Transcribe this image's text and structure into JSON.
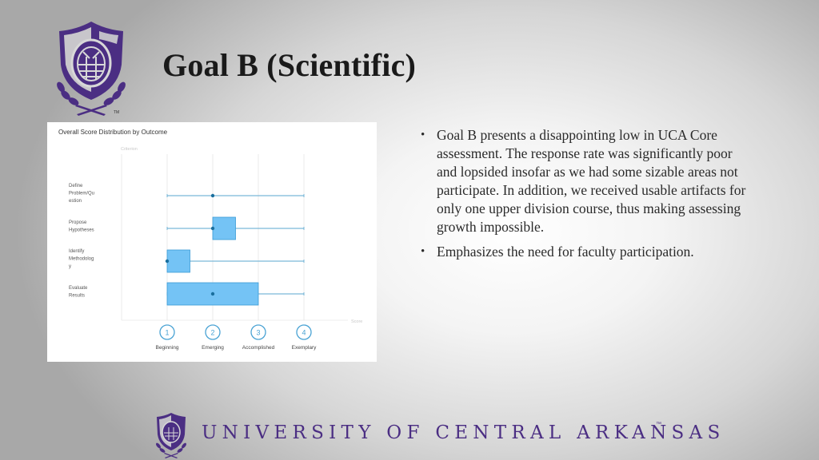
{
  "slide": {
    "title": "Goal B (Scientific)",
    "bullets": [
      "Goal B presents a disappointing low in UCA Core assessment. The response rate was significantly poor and lopsided insofar as we had some sizable areas not participate. In addition, we received usable artifacts for only one upper division course, thus making assessing growth impossible.",
      "Emphasizes the need for faculty participation."
    ],
    "footer": {
      "text": "UNIVERSITY OF CENTRAL ARKANSAS",
      "trademark": "™"
    },
    "logo_tm": "TM"
  },
  "colors": {
    "brand_purple": "#4b2e83",
    "box_fill": "#74c3f5",
    "box_stroke": "#3a9bd6",
    "whisker": "#5aa7cf",
    "median_dot": "#1a6f9e",
    "grid": "#e6e6e6",
    "circle_stroke": "#4aa3d4"
  },
  "chart_data": {
    "type": "boxplot",
    "title": "Overall Score Distribution by Outcome",
    "ylabel": "Criterion",
    "xlabel": "Score",
    "xlim": [
      0,
      4.5
    ],
    "ticks": [
      {
        "value": 1,
        "label": "Beginning"
      },
      {
        "value": 2,
        "label": "Emerging"
      },
      {
        "value": 3,
        "label": "Accomplished"
      },
      {
        "value": 4,
        "label": "Exemplary"
      }
    ],
    "grid": true,
    "series": [
      {
        "name": "Define Problem/Question",
        "label_lines": [
          "Define",
          "Problem/Qu",
          "estion"
        ],
        "min": 1,
        "q1": 2,
        "median": 2,
        "q3": 2,
        "max": 4
      },
      {
        "name": "Propose Hypotheses",
        "label_lines": [
          "Propose",
          "Hypotheses"
        ],
        "min": 1,
        "q1": 2,
        "median": 2,
        "q3": 2.5,
        "max": 4
      },
      {
        "name": "Identify Methodology",
        "label_lines": [
          "Identify",
          "Methodolog",
          "y"
        ],
        "min": 1,
        "q1": 1,
        "median": 1,
        "q3": 1.5,
        "max": 4
      },
      {
        "name": "Evaluate Results",
        "label_lines": [
          "Evaluate",
          "Results"
        ],
        "min": 1,
        "q1": 1,
        "median": 2,
        "q3": 3,
        "max": 4
      }
    ]
  }
}
